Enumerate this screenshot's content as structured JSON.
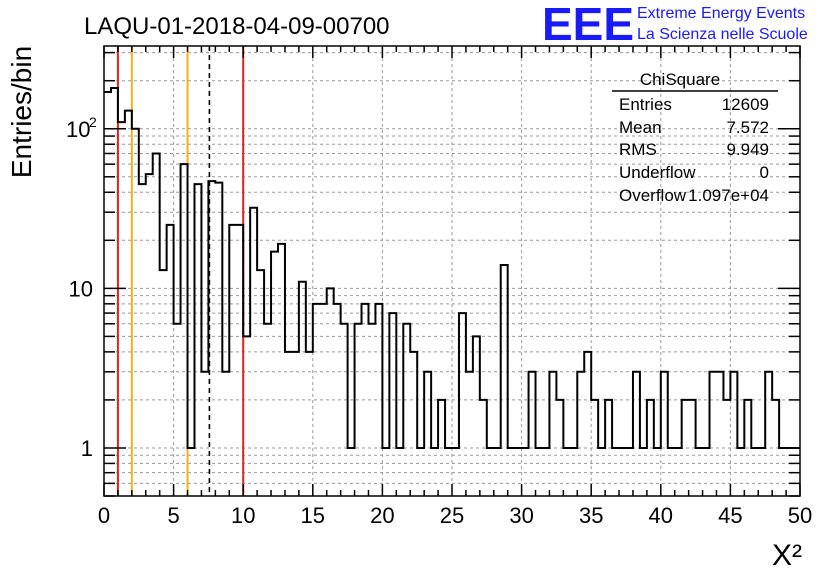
{
  "title": "LAQU-01-2018-04-09-00700",
  "logo": {
    "mark": "EEE",
    "line1": "Extreme Energy Events",
    "line2": "La Scienza nelle Scuole",
    "color": "#1a1aff"
  },
  "colors": {
    "red": "#e0241b",
    "orange": "#f2b21b",
    "hist": "#000000"
  },
  "stats": {
    "title": "ChiSquare",
    "rows": [
      {
        "label": "Entries",
        "value": "12609"
      },
      {
        "label": "Mean",
        "value": "7.572"
      },
      {
        "label": "RMS",
        "value": "9.949"
      },
      {
        "label": "Underflow",
        "value": "0"
      },
      {
        "label": "Overflow",
        "value": "1.097e+04"
      }
    ]
  },
  "chart_data": {
    "type": "bar",
    "style": "step-histogram",
    "xlabel": "X²",
    "ylabel": "Entries/bin",
    "xlim": [
      0,
      50
    ],
    "ylim": [
      0.5,
      330
    ],
    "yscale": "log",
    "grid": true,
    "bin_width": 0.5,
    "xticks": [
      "0",
      "5",
      "10",
      "15",
      "20",
      "25",
      "30",
      "35",
      "40",
      "45",
      "50"
    ],
    "yticks": [
      {
        "value": 1,
        "base": "1",
        "exp": ""
      },
      {
        "value": 10,
        "base": "10",
        "exp": ""
      },
      {
        "value": 100,
        "base": "10",
        "exp": "2"
      }
    ],
    "values": [
      170,
      180,
      110,
      130,
      100,
      45,
      52,
      70,
      13,
      25,
      6,
      60,
      1,
      45,
      3,
      47,
      46,
      3,
      25,
      25,
      5,
      32,
      13,
      6,
      17,
      19,
      4,
      4,
      11,
      4,
      8,
      8,
      10,
      8,
      6,
      1,
      6,
      8,
      6,
      8,
      1,
      7,
      1,
      6,
      4,
      1,
      3,
      1,
      2,
      1,
      1,
      7,
      3,
      5,
      2,
      1,
      1,
      14,
      1,
      1,
      1,
      3,
      1,
      1,
      3,
      2,
      1,
      1,
      3,
      4,
      2,
      1,
      2,
      1,
      1,
      1,
      3,
      1,
      2,
      1,
      3,
      1,
      1,
      2,
      2,
      1,
      1,
      3,
      3,
      2,
      3,
      1,
      2,
      1,
      1,
      3,
      2,
      1,
      1,
      1
    ],
    "vlines": [
      {
        "x": 1,
        "color": "red",
        "style": "solid"
      },
      {
        "x": 2,
        "color": "orange",
        "style": "solid"
      },
      {
        "x": 6,
        "color": "orange",
        "style": "solid"
      },
      {
        "x": 7.572,
        "color": "black",
        "style": "dashed"
      },
      {
        "x": 10,
        "color": "red",
        "style": "solid"
      }
    ]
  }
}
